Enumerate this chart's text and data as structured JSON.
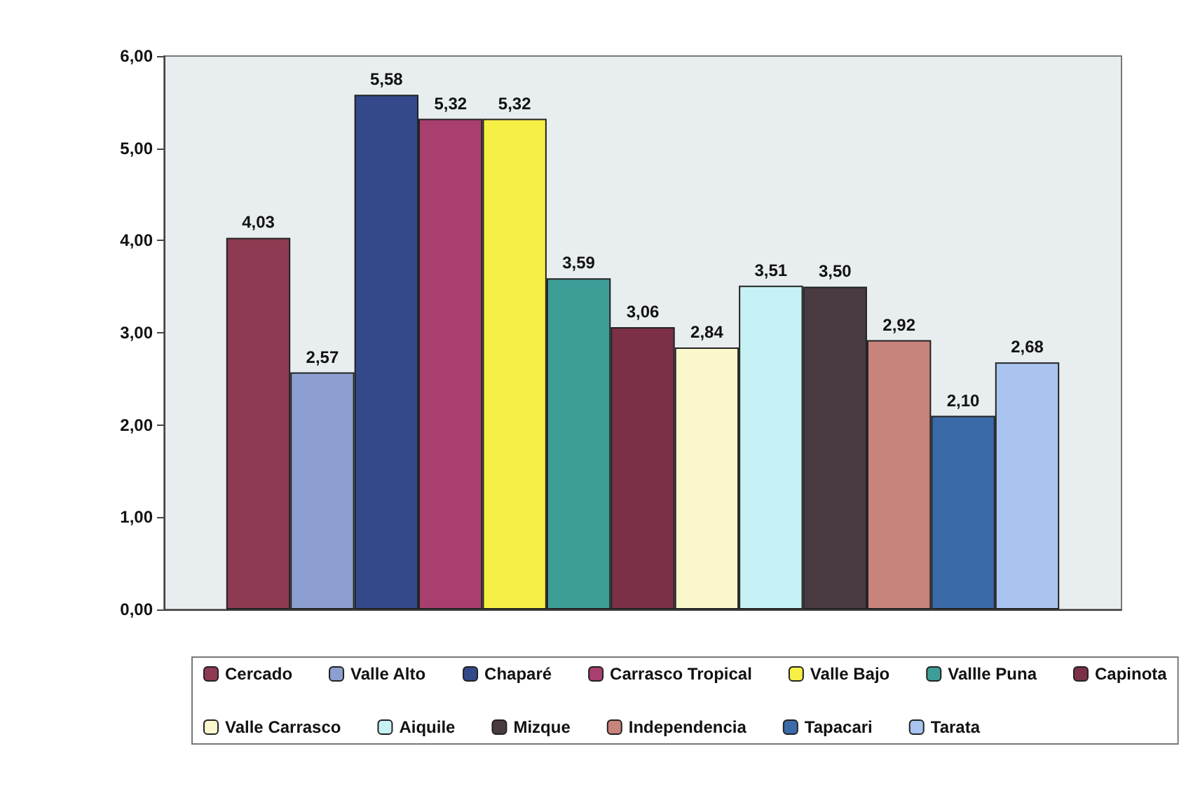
{
  "chart_data": {
    "type": "bar",
    "categories": [
      null
    ],
    "ylim": [
      0,
      6
    ],
    "yticks": [
      {
        "value": 0,
        "label": "0,00"
      },
      {
        "value": 1,
        "label": "1,00"
      },
      {
        "value": 2,
        "label": "2,00"
      },
      {
        "value": 3,
        "label": "3,00"
      },
      {
        "value": 4,
        "label": "4,00"
      },
      {
        "value": 5,
        "label": "5,00"
      },
      {
        "value": 6,
        "label": "6,00"
      }
    ],
    "grid": false,
    "legend": "bottom",
    "series": [
      {
        "name": "Cercado",
        "color": "#8e3a52",
        "values": [
          4.03
        ],
        "value_labels": [
          "4,03"
        ]
      },
      {
        "name": "Valle Alto",
        "color": "#8c9fd0",
        "values": [
          2.57
        ],
        "value_labels": [
          "2,57"
        ]
      },
      {
        "name": "Chaparé",
        "color": "#34498a",
        "values": [
          5.58
        ],
        "value_labels": [
          "5,58"
        ]
      },
      {
        "name": "Carrasco Tropical",
        "color": "#a83f6e",
        "values": [
          5.32
        ],
        "value_labels": [
          "5,32"
        ]
      },
      {
        "name": "Valle Bajo",
        "color": "#f6ef45",
        "values": [
          5.32
        ],
        "value_labels": [
          "5,32"
        ]
      },
      {
        "name": "Vallle Puna",
        "color": "#3d9e98",
        "values": [
          3.59
        ],
        "value_labels": [
          "3,59"
        ]
      },
      {
        "name": "Capinota",
        "color": "#7c3048",
        "values": [
          3.06
        ],
        "value_labels": [
          "3,06"
        ]
      },
      {
        "name": "Valle Carrasco",
        "color": "#fbf7cc",
        "values": [
          2.84
        ],
        "value_labels": [
          "2,84"
        ]
      },
      {
        "name": "Aiquile",
        "color": "#c7f2f5",
        "values": [
          3.51
        ],
        "value_labels": [
          "3,51"
        ]
      },
      {
        "name": "Mizque",
        "color": "#4a3a42",
        "values": [
          3.5
        ],
        "value_labels": [
          "3,50"
        ]
      },
      {
        "name": "Independencia",
        "color": "#c8837c",
        "values": [
          2.92
        ],
        "value_labels": [
          "2,92"
        ]
      },
      {
        "name": "Tapacari",
        "color": "#3b6aa8",
        "values": [
          2.1
        ],
        "value_labels": [
          "2,10"
        ]
      },
      {
        "name": "Tarata",
        "color": "#a9c4ef",
        "values": [
          2.68
        ],
        "value_labels": [
          "2,68"
        ]
      }
    ]
  }
}
